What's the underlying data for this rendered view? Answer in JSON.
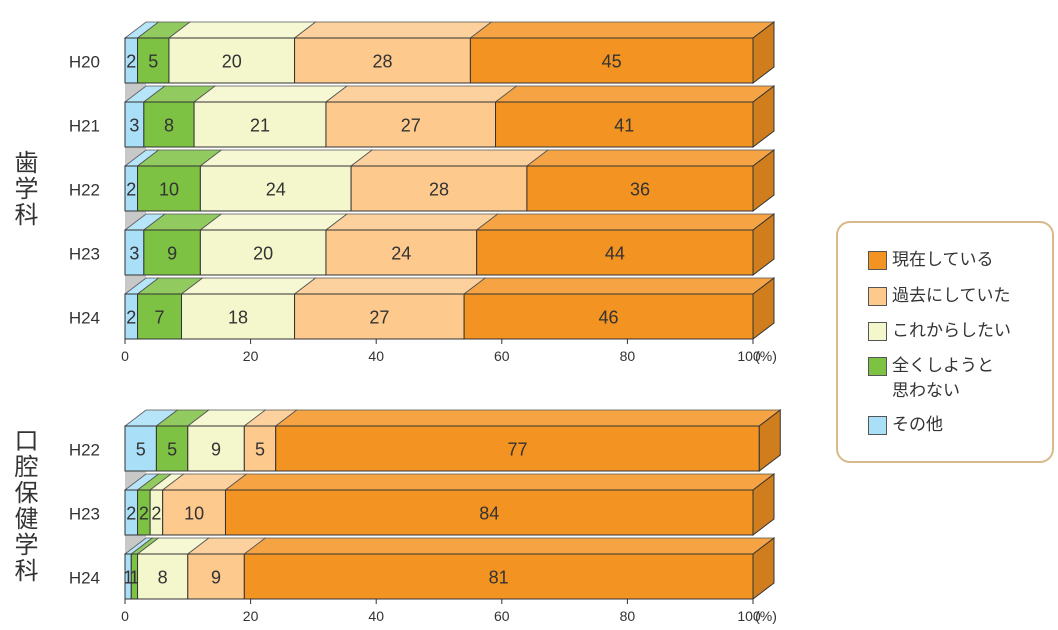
{
  "legend": [
    {
      "label": "現在している",
      "color": "#f39322"
    },
    {
      "label": "過去にしていた",
      "color": "#fdc98d"
    },
    {
      "label": "これからしたい",
      "color": "#f4f7cc"
    },
    {
      "label": "全くしようと\n思わない",
      "color": "#7dc243"
    },
    {
      "label": "その他",
      "color": "#a9dff7"
    }
  ],
  "chart_data": [
    {
      "type": "bar",
      "orientation": "horizontal",
      "stacked": true,
      "group_label": "歯学科",
      "categories": [
        "H20",
        "H21",
        "H22",
        "H23",
        "H24"
      ],
      "series": [
        {
          "name": "その他",
          "color": "#a9dff7",
          "values": [
            2,
            3,
            2,
            3,
            2
          ]
        },
        {
          "name": "全くしようと思わない",
          "color": "#7dc243",
          "values": [
            5,
            8,
            10,
            9,
            7
          ]
        },
        {
          "name": "これからしたい",
          "color": "#f4f7cc",
          "values": [
            20,
            21,
            24,
            20,
            18
          ]
        },
        {
          "name": "過去にしていた",
          "color": "#fdc98d",
          "values": [
            28,
            27,
            28,
            24,
            27
          ]
        },
        {
          "name": "現在している",
          "color": "#f39322",
          "values": [
            45,
            41,
            36,
            44,
            46
          ]
        }
      ],
      "xlim": [
        0,
        100
      ],
      "xticks": [
        0,
        20,
        40,
        60,
        80,
        100
      ],
      "unit": "(%)"
    },
    {
      "type": "bar",
      "orientation": "horizontal",
      "stacked": true,
      "group_label": "口腔保健学科",
      "categories": [
        "H22",
        "H23",
        "H24"
      ],
      "series": [
        {
          "name": "その他",
          "color": "#a9dff7",
          "values": [
            5,
            2,
            1
          ]
        },
        {
          "name": "全くしようと思わない",
          "color": "#7dc243",
          "values": [
            5,
            2,
            1
          ]
        },
        {
          "name": "これからしたい",
          "color": "#f4f7cc",
          "values": [
            9,
            2,
            8
          ]
        },
        {
          "name": "過去にしていた",
          "color": "#fdc98d",
          "values": [
            5,
            10,
            9
          ]
        },
        {
          "name": "現在している",
          "color": "#f39322",
          "values": [
            77,
            84,
            81
          ]
        }
      ],
      "xlim": [
        0,
        100
      ],
      "xticks": [
        0,
        20,
        40,
        60,
        80,
        100
      ],
      "unit": "(%)"
    }
  ]
}
